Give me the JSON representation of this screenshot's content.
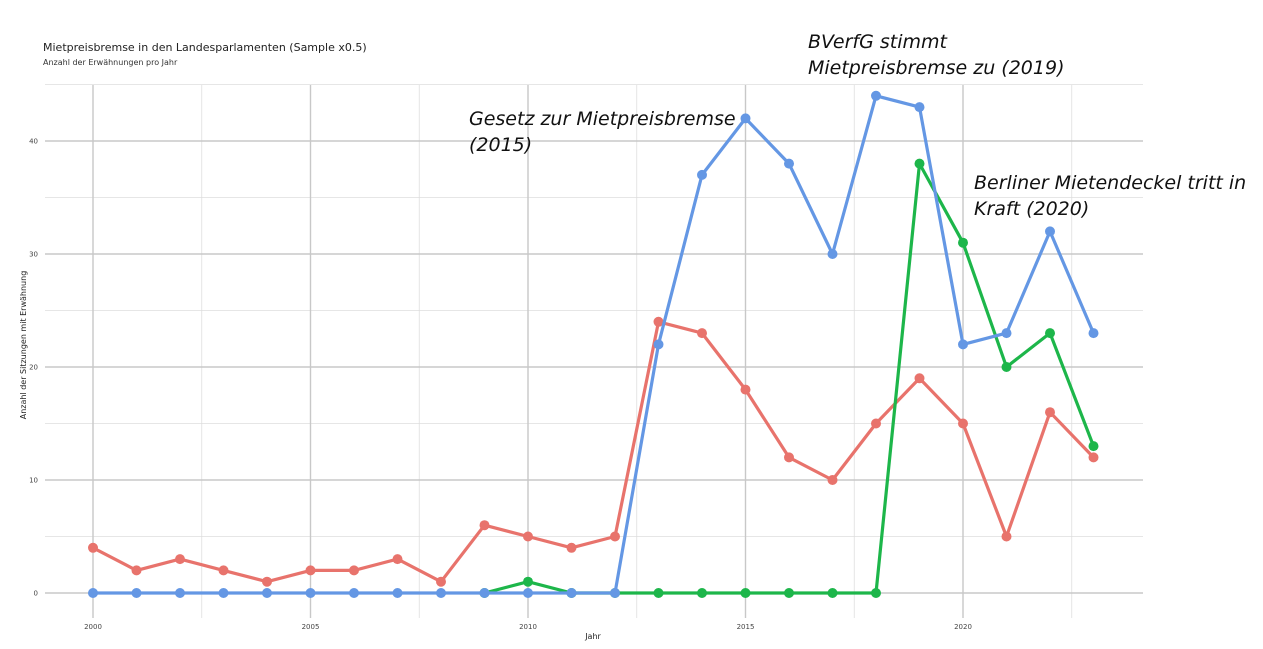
{
  "chart_data": {
    "type": "line",
    "title": "Mietpreisbremse in den Landesparlamenten (Sample x0.5)",
    "subtitle": "Anzahl der Erwähnungen pro Jahr",
    "xlabel": "Jahr",
    "ylabel": "Anzahl der Sitzungen mit Erwähnung",
    "xlim": [
      2000,
      2023
    ],
    "ylim": [
      0,
      45
    ],
    "x_ticks": [
      2000,
      2005,
      2010,
      2015,
      2020
    ],
    "y_ticks": [
      0,
      10,
      20,
      30,
      40
    ],
    "grid": true,
    "legend": "none",
    "x": [
      2000,
      2001,
      2002,
      2003,
      2004,
      2005,
      2006,
      2007,
      2008,
      2009,
      2010,
      2011,
      2012,
      2013,
      2014,
      2015,
      2016,
      2017,
      2018,
      2019,
      2020,
      2021,
      2022,
      2023
    ],
    "series": [
      {
        "color": "#e8736c",
        "values": [
          4,
          2,
          3,
          2,
          1,
          2,
          2,
          3,
          1,
          6,
          5,
          4,
          5,
          24,
          23,
          18,
          12,
          10,
          15,
          19,
          15,
          5,
          16,
          12
        ]
      },
      {
        "color": "#1db64a",
        "values": [
          null,
          null,
          null,
          null,
          null,
          null,
          null,
          null,
          null,
          0,
          1,
          0,
          0,
          0,
          0,
          0,
          0,
          0,
          0,
          38,
          31,
          20,
          23,
          13
        ]
      },
      {
        "color": "#6497e4",
        "values": [
          0,
          0,
          0,
          0,
          0,
          0,
          0,
          0,
          0,
          0,
          0,
          0,
          0,
          22,
          37,
          42,
          38,
          30,
          44,
          43,
          22,
          23,
          32,
          23
        ]
      }
    ],
    "annotations": [
      {
        "lines": [
          "Gesetz zur Mietpreisbremse",
          "(2015)"
        ]
      },
      {
        "lines": [
          "BVerfG stimmt",
          "Mietpreisbremse zu (2019)"
        ]
      },
      {
        "lines": [
          "Berliner Mietendeckel tritt in",
          "Kraft (2020)"
        ]
      }
    ]
  }
}
